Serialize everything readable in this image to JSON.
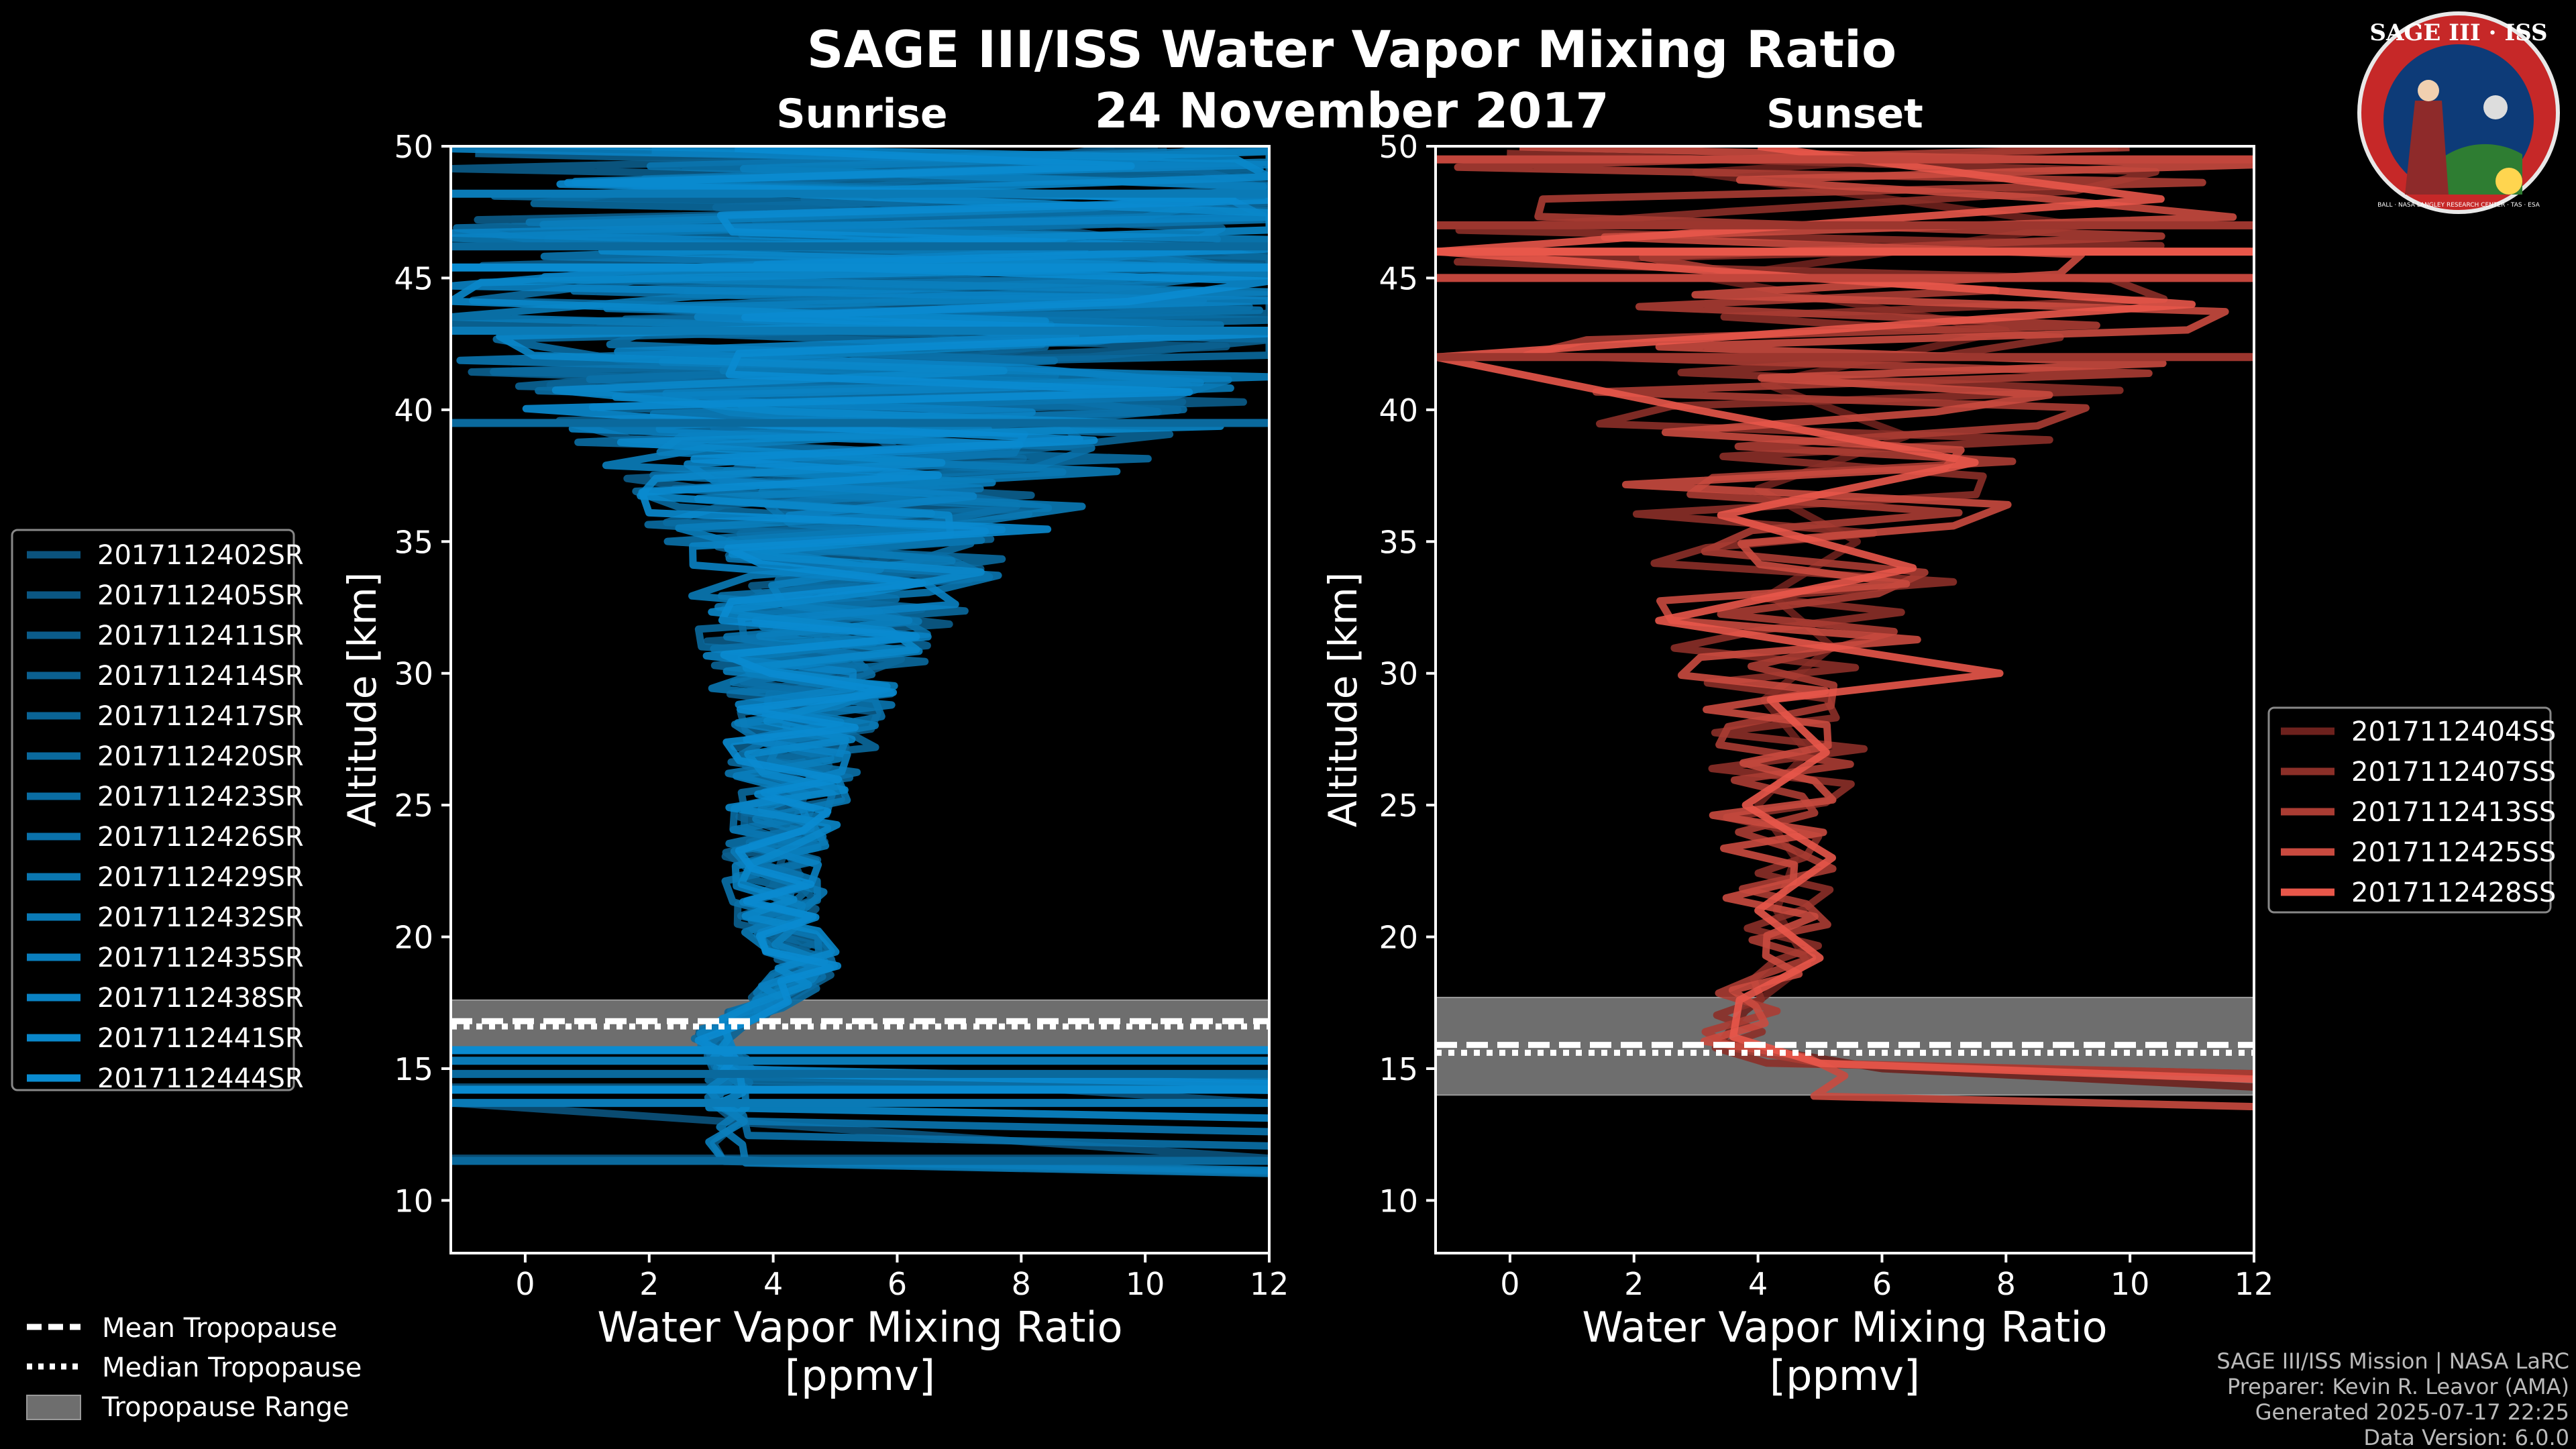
{
  "title": "SAGE III/ISS Water Vapor Mixing Ratio",
  "subtitle_date": "24 November 2017",
  "logo": {
    "text": "SAGE III · ISS",
    "ring_text": "BALL · NASA LANGLEY RESEARCH CENTER · TAS · ESA"
  },
  "footer": {
    "line1": "SAGE III/ISS Mission | NASA LaRC",
    "line2": "Preparer: Kevin R. Leavor (AMA)",
    "line3": "Generated 2025-07-17 22:25",
    "line4": "Data Version: 6.0.0"
  },
  "bottom_legend": {
    "mean": "Mean Tropopause",
    "median": "Median Tropopause",
    "range": "Tropopause Range"
  },
  "colors": {
    "sunrise": "#0a8bd0",
    "sunset": "#e8574a",
    "range_fill": "#6e6e6e"
  },
  "chart_data": [
    {
      "type": "line",
      "panel": "Sunrise",
      "title": "Sunrise",
      "xlabel_line1": "Water Vapor Mixing Ratio",
      "xlabel_line2": "[ppmv]",
      "ylabel": "Altitude [km]",
      "xlim": [
        -1.2,
        12
      ],
      "ylim": [
        8,
        50
      ],
      "xticks": [
        "0",
        "2",
        "4",
        "6",
        "8",
        "10",
        "12"
      ],
      "yticks": [
        "10",
        "15",
        "20",
        "25",
        "30",
        "35",
        "40",
        "45",
        "50"
      ],
      "tropopause": {
        "mean": 16.8,
        "median": 16.6,
        "range": [
          15.8,
          17.6
        ]
      },
      "series_names": [
        "2017112402SR",
        "2017112405SR",
        "2017112411SR",
        "2017112414SR",
        "2017112417SR",
        "2017112420SR",
        "2017112423SR",
        "2017112426SR",
        "2017112429SR",
        "2017112432SR",
        "2017112435SR",
        "2017112438SR",
        "2017112441SR",
        "2017112444SR"
      ],
      "profile_center": [
        [
          15,
          3.3
        ],
        [
          16.5,
          3.0
        ],
        [
          17.5,
          4.0
        ],
        [
          19,
          4.6
        ],
        [
          21,
          4.0
        ],
        [
          24,
          4.1
        ],
        [
          28,
          4.5
        ],
        [
          32,
          4.8
        ],
        [
          36,
          5.3
        ],
        [
          40,
          5.8
        ],
        [
          44,
          6.2
        ],
        [
          50,
          6.5
        ]
      ],
      "profile_spread": [
        [
          15,
          0.3
        ],
        [
          17,
          0.3
        ],
        [
          20,
          0.6
        ],
        [
          25,
          0.8
        ],
        [
          30,
          1.4
        ],
        [
          35,
          2.5
        ],
        [
          38,
          3.8
        ],
        [
          41,
          5.5
        ],
        [
          44,
          7.0
        ],
        [
          50,
          8.0
        ]
      ],
      "full_width_rows": [
        11.5,
        13.7,
        14.2,
        14.8,
        15.3,
        15.7,
        39.5,
        43.0,
        45.4,
        46.2,
        48.2
      ],
      "series": [
        {
          "name": "2017112402SR",
          "values": [
            [
              11.6,
              -1.2
            ],
            [
              11.6,
              12.0
            ],
            [
              13.7,
              -1.2
            ],
            [
              13.7,
              12.0
            ],
            [
              15.0,
              3.2
            ],
            [
              16.3,
              2.8
            ],
            [
              17.4,
              4.1
            ],
            [
              18.9,
              4.6
            ],
            [
              20.0,
              4.2
            ],
            [
              22.0,
              4.0
            ],
            [
              24.0,
              4.3
            ],
            [
              26.0,
              4.6
            ],
            [
              28.0,
              4.2
            ],
            [
              30.0,
              5.0
            ],
            [
              32.0,
              4.6
            ],
            [
              34.0,
              5.6
            ],
            [
              36.0,
              4.9
            ],
            [
              38.0,
              6.4
            ],
            [
              40.0,
              4.8
            ],
            [
              42.0,
              7.8
            ],
            [
              44.0,
              5.2
            ],
            [
              46.0,
              8.8
            ],
            [
              48.0,
              4.5
            ],
            [
              50.0,
              9.5
            ]
          ]
        },
        {
          "name": "2017112405SR",
          "values": [
            [
              14.3,
              -1.2
            ],
            [
              14.3,
              12.0
            ],
            [
              15.0,
              3.4
            ],
            [
              16.4,
              3.1
            ],
            [
              17.5,
              3.9
            ],
            [
              19.0,
              4.8
            ],
            [
              20.5,
              3.9
            ],
            [
              22.5,
              4.4
            ],
            [
              24.5,
              3.9
            ],
            [
              26.5,
              4.9
            ],
            [
              28.5,
              4.4
            ],
            [
              30.5,
              5.4
            ],
            [
              32.5,
              4.5
            ],
            [
              34.5,
              5.9
            ],
            [
              36.5,
              4.4
            ],
            [
              38.5,
              7.1
            ],
            [
              40.5,
              4.6
            ],
            [
              42.5,
              8.4
            ],
            [
              44.5,
              4.1
            ],
            [
              46.5,
              9.6
            ],
            [
              48.5,
              3.8
            ],
            [
              50.0,
              10.2
            ]
          ]
        }
      ]
    },
    {
      "type": "line",
      "panel": "Sunset",
      "title": "Sunset",
      "xlabel_line1": "Water Vapor Mixing Ratio",
      "xlabel_line2": "[ppmv]",
      "ylabel": "Altitude [km]",
      "xlim": [
        -1.2,
        12
      ],
      "ylim": [
        8,
        50
      ],
      "xticks": [
        "0",
        "2",
        "4",
        "6",
        "8",
        "10",
        "12"
      ],
      "yticks": [
        "10",
        "15",
        "20",
        "25",
        "30",
        "35",
        "40",
        "45",
        "50"
      ],
      "tropopause": {
        "mean": 15.9,
        "median": 15.6,
        "range": [
          14.0,
          17.7
        ]
      },
      "series_names": [
        "2017112404SS",
        "2017112407SS",
        "2017112413SS",
        "2017112425SS",
        "2017112428SS"
      ],
      "profile_center": [
        [
          14.5,
          5.5
        ],
        [
          16,
          3.5
        ],
        [
          17.5,
          3.8
        ],
        [
          19,
          4.6
        ],
        [
          21,
          4.3
        ],
        [
          24,
          4.2
        ],
        [
          28,
          4.4
        ],
        [
          32,
          4.6
        ],
        [
          36,
          5.0
        ],
        [
          40,
          5.3
        ],
        [
          44,
          5.5
        ],
        [
          50,
          6.0
        ]
      ],
      "profile_spread": [
        [
          15,
          0.5
        ],
        [
          17,
          0.5
        ],
        [
          20,
          0.7
        ],
        [
          25,
          0.9
        ],
        [
          30,
          1.6
        ],
        [
          35,
          2.2
        ],
        [
          40,
          3.5
        ],
        [
          44,
          5.5
        ],
        [
          50,
          6.5
        ]
      ],
      "full_width_rows": [
        42.0,
        45.0,
        46.0,
        47.0,
        49.5
      ],
      "series": [
        {
          "name": "2017112404SS",
          "values": [
            [
              14.3,
              12.0
            ],
            [
              15.0,
              6.0
            ],
            [
              16.0,
              3.4
            ],
            [
              17.2,
              3.8
            ],
            [
              19.0,
              4.8
            ],
            [
              21.0,
              4.3
            ],
            [
              23.0,
              4.6
            ],
            [
              25.0,
              4.0
            ],
            [
              27.0,
              4.8
            ],
            [
              29.0,
              4.1
            ],
            [
              31.0,
              5.2
            ],
            [
              33.0,
              4.2
            ],
            [
              35.0,
              5.6
            ],
            [
              37.0,
              4.0
            ],
            [
              39.0,
              6.4
            ],
            [
              41.0,
              4.1
            ],
            [
              43.0,
              8.0
            ],
            [
              45.0,
              3.2
            ],
            [
              47.0,
              9.2
            ],
            [
              49.0,
              3.0
            ],
            [
              50.0,
              9.8
            ]
          ]
        },
        {
          "name": "2017112428SS",
          "values": [
            [
              14.6,
              12.0
            ],
            [
              15.2,
              5.0
            ],
            [
              16.2,
              3.6
            ],
            [
              17.6,
              3.7
            ],
            [
              19.2,
              5.0
            ],
            [
              21.0,
              4.0
            ],
            [
              23.0,
              5.2
            ],
            [
              25.0,
              3.8
            ],
            [
              27.0,
              5.1
            ],
            [
              29.0,
              4.2
            ],
            [
              30.0,
              7.9
            ],
            [
              32.0,
              2.4
            ],
            [
              34.0,
              6.5
            ],
            [
              36.0,
              3.4
            ],
            [
              38.0,
              7.5
            ],
            [
              40.0,
              3.0
            ],
            [
              42.0,
              -1.2
            ],
            [
              44.0,
              11.0
            ],
            [
              46.0,
              -1.2
            ],
            [
              48.0,
              10.5
            ],
            [
              50.0,
              4.0
            ]
          ]
        }
      ]
    }
  ]
}
